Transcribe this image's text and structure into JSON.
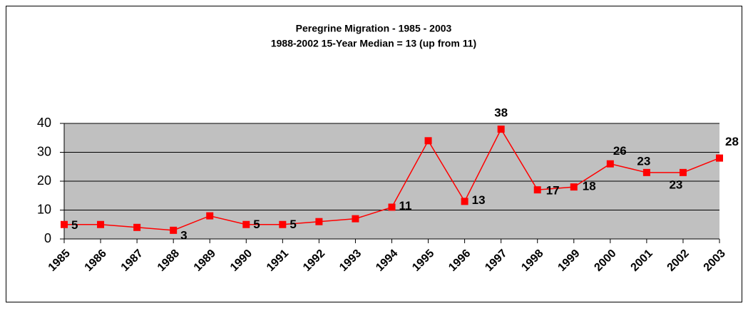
{
  "chart_data": {
    "type": "line",
    "title": "Peregrine Migration - 1985 - 2003",
    "subtitle": "1988-2002 15-Year Median = 13 (up from 11)",
    "categories": [
      "1985",
      "1986",
      "1987",
      "1988",
      "1989",
      "1990",
      "1991",
      "1992",
      "1993",
      "1994",
      "1995",
      "1996",
      "1997",
      "1998",
      "1999",
      "2000",
      "2001",
      "2002",
      "2003"
    ],
    "series": [
      {
        "name": "Peregrine",
        "color": "#ff0000",
        "values": [
          5,
          5,
          4,
          3,
          8,
          5,
          5,
          6,
          7,
          11,
          34,
          13,
          38,
          17,
          18,
          26,
          23,
          23,
          28
        ],
        "value_labels": [
          "5",
          null,
          null,
          "3",
          null,
          "5",
          "5",
          null,
          null,
          "11",
          null,
          "13",
          "38",
          "17",
          "18",
          "26",
          "23",
          "23",
          "28"
        ]
      }
    ],
    "ylim": [
      0,
      40
    ],
    "yticks": [
      0,
      10,
      20,
      30,
      40
    ],
    "grid": true,
    "plot_background": "#c0c0c0"
  }
}
